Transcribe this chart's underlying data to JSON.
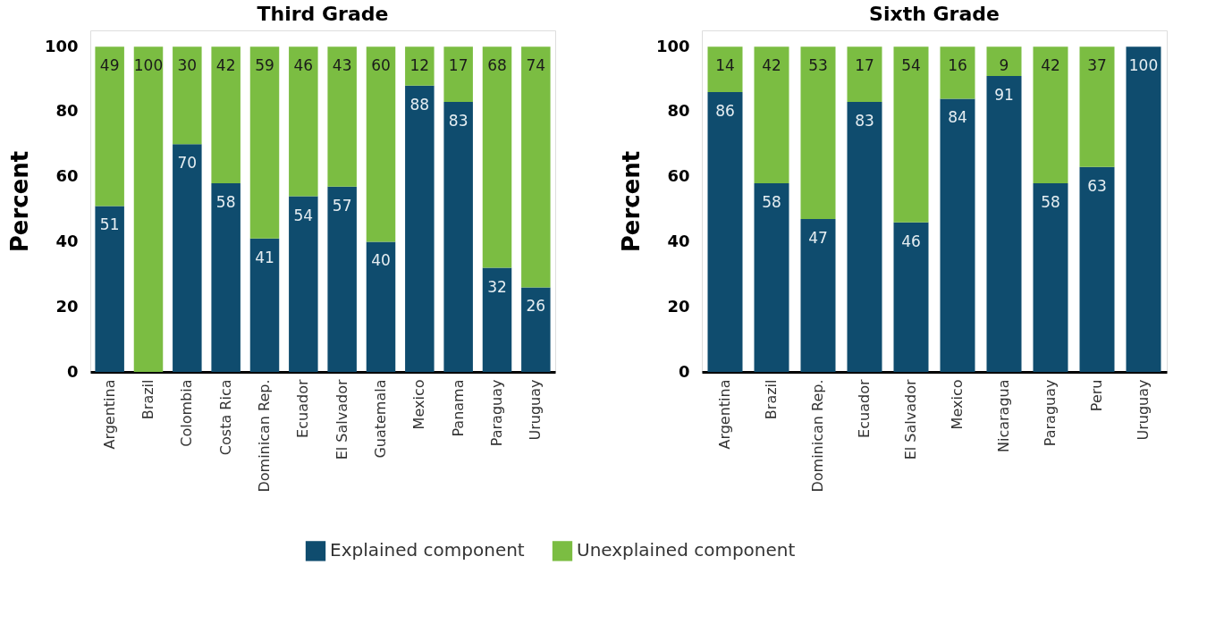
{
  "chart_data": [
    {
      "type": "bar",
      "title": "Third Grade",
      "ylabel": "Percent",
      "stacked": true,
      "legend": "bottom",
      "categories": [
        "Argentina",
        "Brazil",
        "Colombia",
        "Costa Rica",
        "Dominican Rep.",
        "Ecuador",
        "El Salvador",
        "Guatemala",
        "Mexico",
        "Panama",
        "Paraguay",
        "Uruguay"
      ],
      "ylim": [
        0,
        105
      ],
      "yticks": [
        0,
        20,
        40,
        60,
        80,
        100
      ],
      "series": [
        {
          "name": "Explained component",
          "color": "#0f4c6e",
          "values": [
            51,
            0,
            70,
            58,
            41,
            54,
            57,
            40,
            88,
            83,
            32,
            26
          ],
          "value_labels": [
            "51",
            null,
            "70",
            "58",
            "41",
            "54",
            "57",
            "40",
            "88",
            "83",
            "32",
            "26"
          ]
        },
        {
          "name": "Unexplained component",
          "color": "#7bbd42",
          "values": [
            49,
            100,
            30,
            42,
            59,
            46,
            43,
            60,
            12,
            17,
            68,
            74
          ],
          "value_labels": [
            "49",
            "100",
            "30",
            "42",
            "59",
            "46",
            "43",
            "60",
            "12",
            "17",
            "68",
            "74"
          ]
        }
      ]
    },
    {
      "type": "bar",
      "title": "Sixth Grade",
      "ylabel": "Percent",
      "stacked": true,
      "legend": "bottom",
      "categories": [
        "Argentina",
        "Brazil",
        "Dominican Rep.",
        "Ecuador",
        "El Salvador",
        "Mexico",
        "Nicaragua",
        "Paraguay",
        "Peru",
        "Uruguay"
      ],
      "ylim": [
        0,
        105
      ],
      "yticks": [
        0,
        20,
        40,
        60,
        80,
        100
      ],
      "series": [
        {
          "name": "Explained component",
          "color": "#0f4c6e",
          "values": [
            86,
            58,
            47,
            83,
            46,
            84,
            91,
            58,
            63,
            100
          ],
          "value_labels": [
            "86",
            "58",
            "47",
            "83",
            "46",
            "84",
            "91",
            "58",
            "63",
            "100"
          ]
        },
        {
          "name": "Unexplained component",
          "color": "#7bbd42",
          "values": [
            14,
            42,
            53,
            17,
            54,
            16,
            9,
            42,
            37,
            0
          ],
          "value_labels": [
            "14",
            "42",
            "53",
            "17",
            "54",
            "16",
            "9",
            "42",
            "37",
            null
          ]
        }
      ]
    }
  ]
}
